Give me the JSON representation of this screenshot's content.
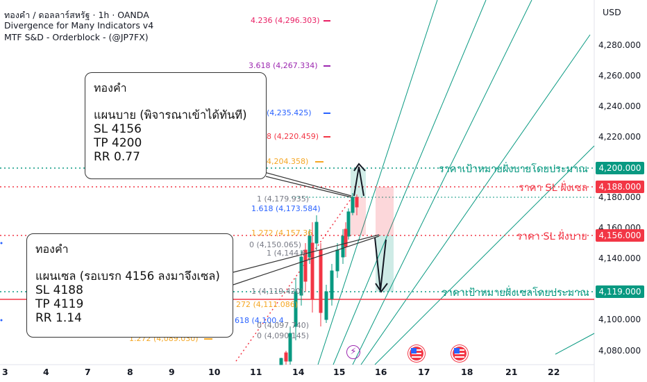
{
  "header": {
    "line1": "ทองคำ / ดอลลาร์สหรัฐ · 1h · OANDA",
    "line2": "Divergence for Many Indicators v4",
    "line3": "MTF S&D - Orderblock - (@JP7FX)"
  },
  "currency_label": "USD",
  "price_axis": [
    "4,280.000",
    "4,260.000",
    "4,240.000",
    "4,220.000",
    "4,180.000",
    "4,160.000",
    "4,140.000",
    "4,100.000",
    "4,080.000"
  ],
  "price_tags": {
    "target_buy": {
      "value": "4,200.000",
      "color": "#089981"
    },
    "sl_sell": {
      "value": "4,188.000",
      "color": "#f23645"
    },
    "sl_buy": {
      "value": "4,156.000",
      "color": "#f23645"
    },
    "target_sell": {
      "value": "4,119.000",
      "color": "#089981"
    }
  },
  "level_labels": {
    "target_buy": "ราคาเป้าหมายฝั่งบายโดยประมาณ",
    "sl_sell": "ราคา SL ฝั่งเซล",
    "sl_buy": "ราคา SL ฝั่งบาย",
    "target_sell": "ราคาเป้าหมายฝั่งเซลโดยประมาณ"
  },
  "fib_labels": {
    "f4236": "4.236 (4,296.303)",
    "f3618": "3.618 (4,267.334)",
    "f_235": "(4,235.425)",
    "f_220": "8 (4,220.459)",
    "f_204": "4,204.358)",
    "f_179": "1 (4,179.935)",
    "f1618": "1.618 (4,173.584)",
    "f1272a": "1.272 (4,157.36",
    "f0a": "0 (4,150.065)",
    "f1a": "1 (4,144.6",
    "f1b": "1 (4,119.420)",
    "f272": "272 (4,111.086)",
    "f618": "618 (4,100.4",
    "f0b": "0 (4,097.740)",
    "f1272b": "1.272 (4,089.030)",
    "f0c": "0 (4,090.145)"
  },
  "callout_buy": {
    "title": "ทองคำ",
    "plan": "แผนบาย (พิจารณาเข้าได้ทันที)",
    "sl": "SL 4156",
    "tp": "TP 4200",
    "rr": "RR 0.77"
  },
  "callout_sell": {
    "title": "ทองคำ",
    "plan": "แผนเซล (รอเบรก 4156 ลงมาจึงเซล)",
    "sl": "SL 4188",
    "tp": "TP 4119",
    "rr": "RR 1.14"
  },
  "dates": [
    "3",
    "4",
    "7",
    "8",
    "9",
    "10",
    "11",
    "14",
    "15",
    "16",
    "17",
    "18",
    "21",
    "22"
  ],
  "colors": {
    "green": "#089981",
    "red": "#f23645",
    "orange": "#f5a623",
    "blue": "#2962ff",
    "purple": "#9c27b0",
    "pink": "#e91e63"
  },
  "icons": [
    "lightning-icon",
    "us-flag-icon",
    "us-flag-icon"
  ]
}
